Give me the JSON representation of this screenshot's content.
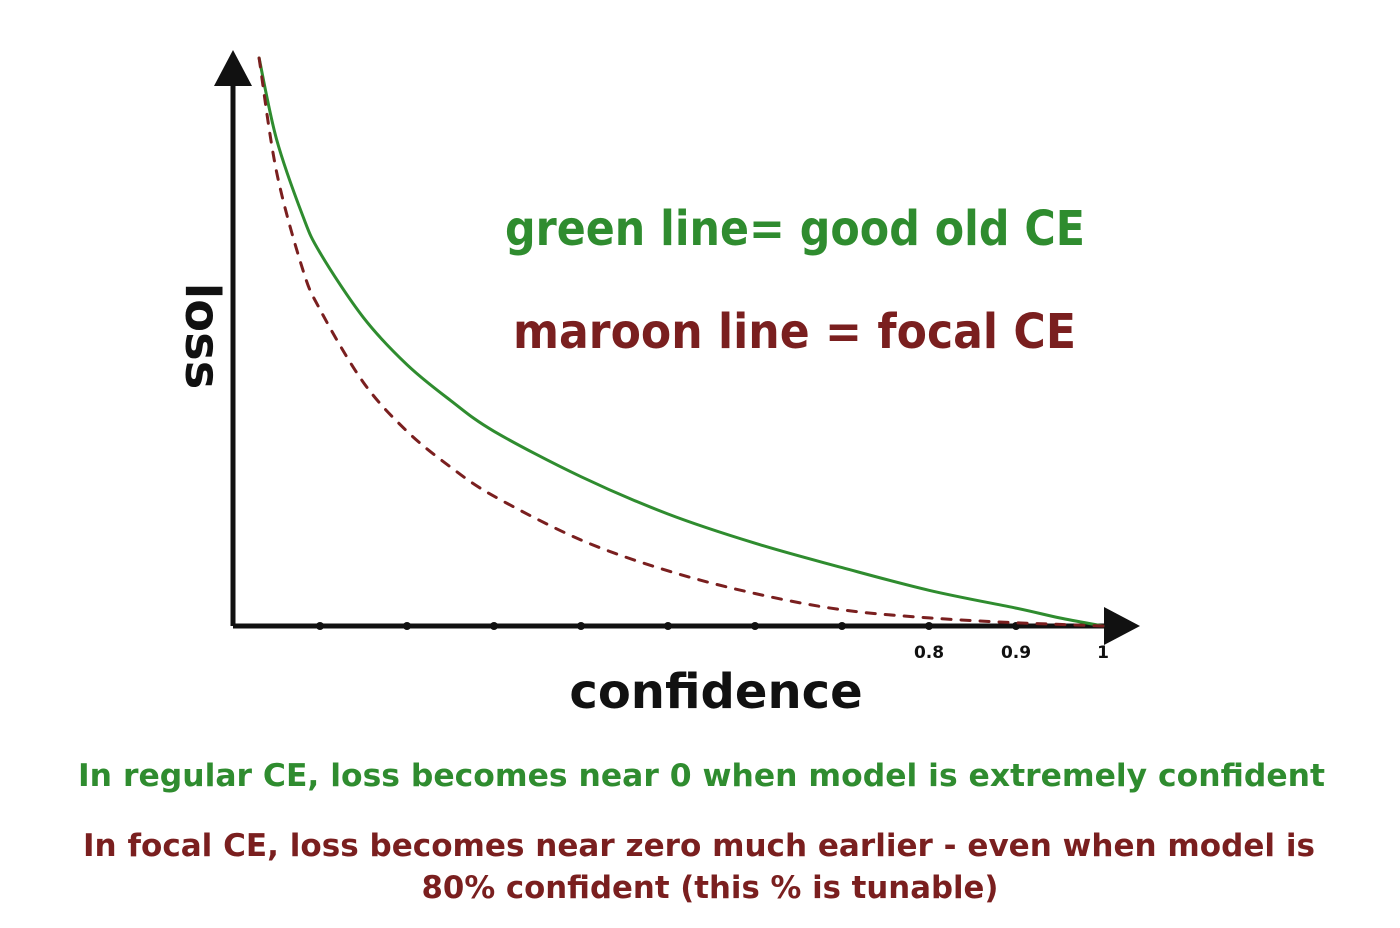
{
  "colors": {
    "ce": "#2f8c2f",
    "focal": "#7a1f1f",
    "axis": "#111111"
  },
  "chart_data": {
    "type": "line",
    "xlabel": "confidence",
    "ylabel": "loss",
    "xlim": [
      0,
      1
    ],
    "xticks": [
      0.1,
      0.2,
      0.3,
      0.4,
      0.5,
      0.6,
      0.7,
      0.8,
      0.9,
      1
    ],
    "xtick_labels": [
      "",
      "",
      "",
      "",
      "",
      "",
      "",
      "0.8",
      "0.9",
      "1"
    ],
    "grid": false,
    "legend_position": "top-right",
    "series": [
      {
        "name": "green line= good old CE",
        "style": "solid",
        "color": "#2f8c2f",
        "x": [
          0.03,
          0.05,
          0.08,
          0.1,
          0.15,
          0.2,
          0.25,
          0.3,
          0.4,
          0.5,
          0.6,
          0.7,
          0.8,
          0.9,
          0.95,
          1.0
        ],
        "y": [
          3.5,
          3.0,
          2.53,
          2.3,
          1.9,
          1.61,
          1.39,
          1.2,
          0.92,
          0.69,
          0.51,
          0.36,
          0.22,
          0.11,
          0.05,
          0.0
        ]
      },
      {
        "name": "maroon line = focal CE",
        "style": "dashed",
        "color": "#7a1f1f",
        "x": [
          0.03,
          0.05,
          0.08,
          0.1,
          0.15,
          0.2,
          0.25,
          0.3,
          0.4,
          0.5,
          0.6,
          0.7,
          0.8,
          0.9,
          0.95,
          1.0
        ],
        "y": [
          3.5,
          2.8,
          2.2,
          1.95,
          1.5,
          1.2,
          0.98,
          0.8,
          0.53,
          0.34,
          0.2,
          0.1,
          0.05,
          0.02,
          0.01,
          0.0
        ]
      }
    ]
  },
  "legend": {
    "ce": "green line= good old CE",
    "focal": "maroon line = focal CE"
  },
  "notes": {
    "ce": "In regular CE, loss becomes near 0 when model is extremely confident",
    "focal_line1": "In focal CE, loss becomes near zero much earlier - even when model is",
    "focal_line2": "80% confident (this % is tunable)"
  }
}
